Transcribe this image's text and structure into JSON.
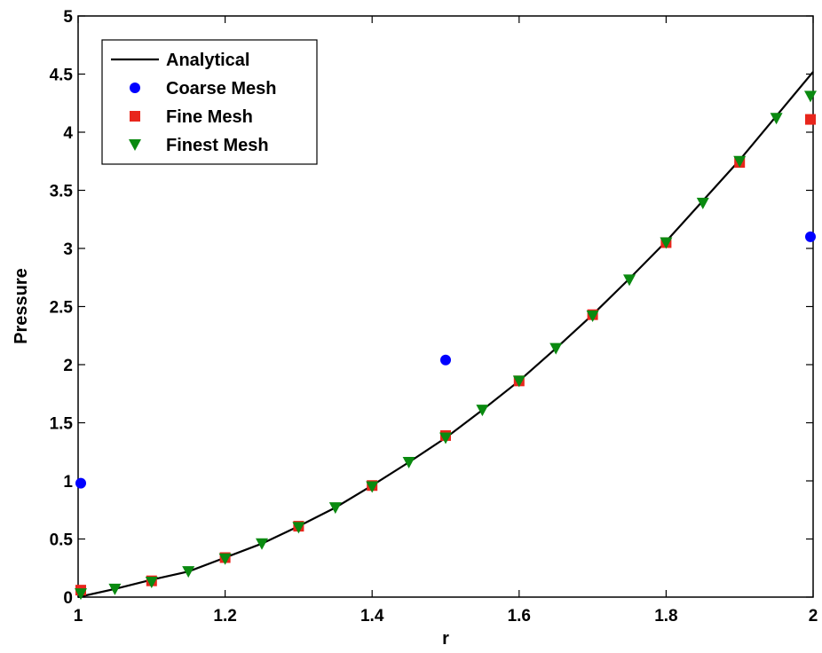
{
  "chart_data": {
    "type": "line",
    "xlabel": "r",
    "ylabel": "Pressure",
    "xlim": [
      1,
      2
    ],
    "ylim": [
      0,
      5
    ],
    "x_ticks": [
      "1",
      "1.2",
      "1.4",
      "1.6",
      "1.8",
      "2"
    ],
    "y_ticks": [
      "0",
      "0.5",
      "1",
      "1.5",
      "2",
      "2.5",
      "3",
      "3.5",
      "4",
      "4.5",
      "5"
    ],
    "legend_position": "top-left",
    "grid": false,
    "series": [
      {
        "name": "Analytical",
        "kind": "line",
        "color": "#000000",
        "x": [
          1.0,
          1.05,
          1.1,
          1.15,
          1.2,
          1.25,
          1.3,
          1.35,
          1.4,
          1.45,
          1.5,
          1.55,
          1.6,
          1.65,
          1.7,
          1.75,
          1.8,
          1.85,
          1.9,
          1.95,
          2.0
        ],
        "y": [
          0.0,
          0.07,
          0.15,
          0.22,
          0.34,
          0.46,
          0.61,
          0.77,
          0.96,
          1.16,
          1.37,
          1.61,
          1.86,
          2.14,
          2.43,
          2.74,
          3.06,
          3.41,
          3.76,
          4.14,
          4.52
        ]
      },
      {
        "name": "Coarse Mesh",
        "kind": "scatter",
        "marker": "circle",
        "color": "#0000ff",
        "x": [
          1.0,
          1.5,
          2.0
        ],
        "y": [
          0.98,
          2.04,
          3.1
        ]
      },
      {
        "name": "Fine Mesh",
        "kind": "scatter",
        "marker": "square",
        "color": "#e8261c",
        "x": [
          1.0,
          1.1,
          1.2,
          1.3,
          1.4,
          1.5,
          1.6,
          1.7,
          1.8,
          1.9,
          2.0
        ],
        "y": [
          0.06,
          0.14,
          0.34,
          0.61,
          0.96,
          1.39,
          1.86,
          2.43,
          3.05,
          3.74,
          4.11
        ]
      },
      {
        "name": "Finest Mesh",
        "kind": "scatter",
        "marker": "triangle-down",
        "color": "#0a8a10",
        "x": [
          1.0,
          1.05,
          1.1,
          1.15,
          1.2,
          1.25,
          1.3,
          1.35,
          1.4,
          1.45,
          1.5,
          1.55,
          1.6,
          1.65,
          1.7,
          1.75,
          1.8,
          1.85,
          1.9,
          1.95,
          2.0
        ],
        "y": [
          0.03,
          0.07,
          0.13,
          0.22,
          0.33,
          0.46,
          0.6,
          0.77,
          0.95,
          1.16,
          1.37,
          1.61,
          1.86,
          2.14,
          2.42,
          2.73,
          3.05,
          3.39,
          3.75,
          4.12,
          4.31
        ]
      }
    ]
  }
}
